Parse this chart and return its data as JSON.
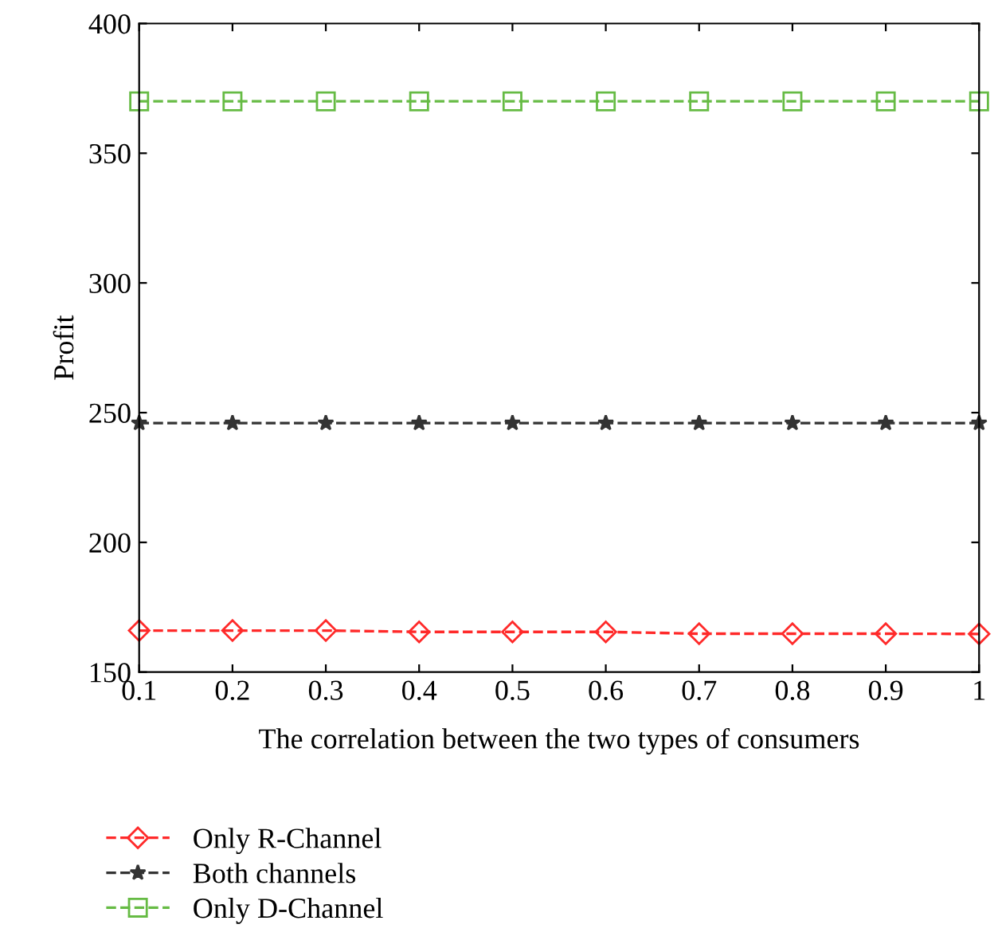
{
  "chart_data": {
    "type": "line",
    "xlabel": "The correlation between the two types of consumers",
    "ylabel": "Profit",
    "x": [
      0.1,
      0.2,
      0.3,
      0.4,
      0.5,
      0.6,
      0.7,
      0.8,
      0.9,
      1
    ],
    "series": [
      {
        "name": "Only R-Channel",
        "color": "#ff2a2a",
        "marker": "diamond",
        "values": [
          166,
          166,
          166,
          165.5,
          165.5,
          165.5,
          164.8,
          164.8,
          164.8,
          164.7
        ]
      },
      {
        "name": "Both channels",
        "color": "#333333",
        "marker": "star",
        "values": [
          246,
          246,
          246,
          246,
          246,
          246,
          246,
          246,
          246,
          246
        ]
      },
      {
        "name": "Only D-Channel",
        "color": "#66bb44",
        "marker": "square",
        "values": [
          370,
          370,
          370,
          370,
          370,
          370,
          370,
          370,
          370,
          370
        ]
      }
    ],
    "line_style": "dashed",
    "xlim": [
      0.1,
      1
    ],
    "ylim": [
      150,
      400
    ],
    "xticks": [
      0.1,
      0.2,
      0.3,
      0.4,
      0.5,
      0.6,
      0.7,
      0.8,
      0.9,
      1
    ],
    "yticks": [
      150,
      200,
      250,
      300,
      350,
      400
    ],
    "grid": false,
    "legend": "bottom left"
  }
}
